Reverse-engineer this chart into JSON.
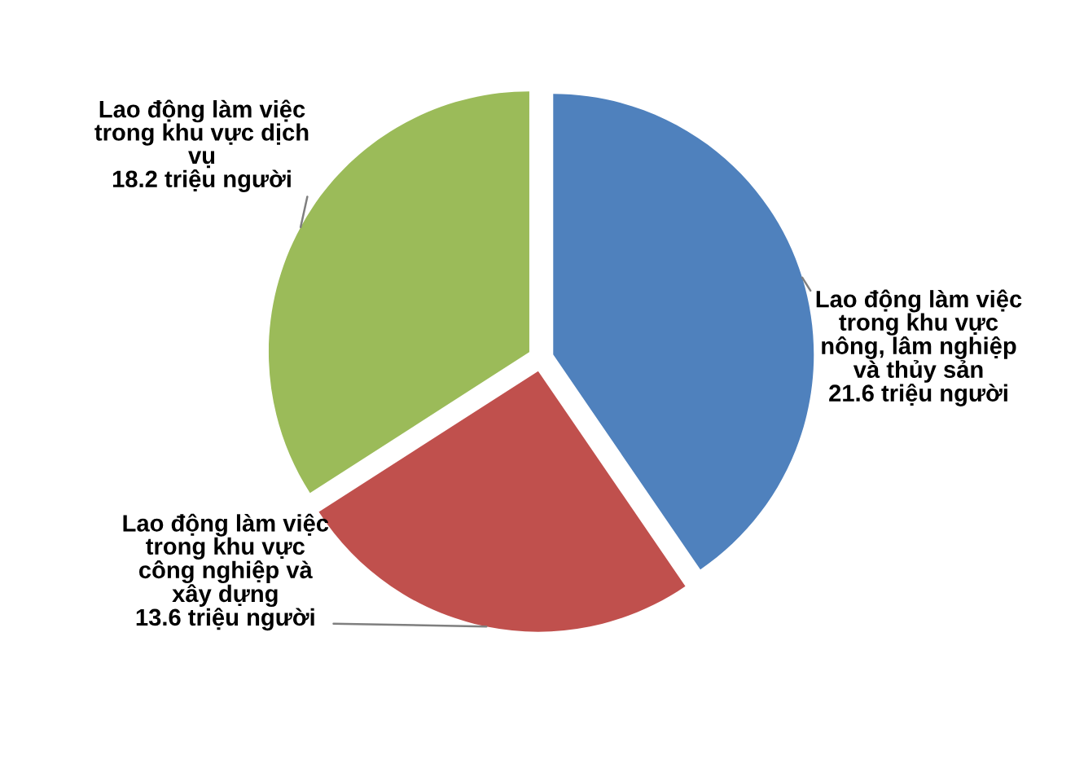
{
  "chart_data": {
    "type": "pie",
    "categories": [
      "Lao động làm việc\ntrong khu vực\nnông, lâm nghiệp\nvà thủy sản",
      "Lao động làm việc\ntrong khu vực\ncông nghiệp và\nxây dựng",
      "Lao động làm việc\ntrong khu vực dịch\nvụ"
    ],
    "values": [
      21.6,
      13.6,
      18.2
    ],
    "value_labels": [
      "21.6 triệu người",
      "13.6 triệu người",
      "18.2 triệu người"
    ],
    "colors": [
      "#4f81bd",
      "#c0504d",
      "#9bbb59"
    ]
  }
}
